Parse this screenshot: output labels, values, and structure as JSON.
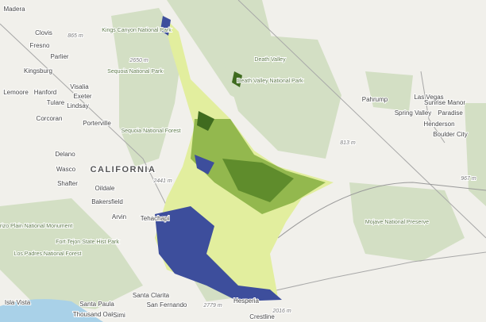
{
  "places": [
    {
      "label": "Madera",
      "kind": "city"
    },
    {
      "label": "Clovis",
      "kind": "city"
    },
    {
      "label": "Fresno",
      "kind": "city"
    },
    {
      "label": "Parlier",
      "kind": "city"
    },
    {
      "label": "Kingsburg",
      "kind": "city"
    },
    {
      "label": "Visalia",
      "kind": "city"
    },
    {
      "label": "Lemoore",
      "kind": "city"
    },
    {
      "label": "Hanford",
      "kind": "city"
    },
    {
      "label": "Exeter",
      "kind": "city"
    },
    {
      "label": "Tulare",
      "kind": "city"
    },
    {
      "label": "Lindsay",
      "kind": "city"
    },
    {
      "label": "Corcoran",
      "kind": "city"
    },
    {
      "label": "Porterville",
      "kind": "city"
    },
    {
      "label": "Delano",
      "kind": "city"
    },
    {
      "label": "Wasco",
      "kind": "city"
    },
    {
      "label": "Shafter",
      "kind": "city"
    },
    {
      "label": "Oildale",
      "kind": "city"
    },
    {
      "label": "Bakersfield",
      "kind": "city"
    },
    {
      "label": "Arvin",
      "kind": "city"
    },
    {
      "label": "Tehachapi",
      "kind": "city"
    },
    {
      "label": "CALIFORNIA",
      "kind": "state"
    },
    {
      "label": "Death Valley",
      "kind": "park"
    },
    {
      "label": "Death Valley National Park",
      "kind": "park"
    },
    {
      "label": "Pahrump",
      "kind": "city"
    },
    {
      "label": "Las Vegas",
      "kind": "city"
    },
    {
      "label": "Sunrise Manor",
      "kind": "city"
    },
    {
      "label": "Spring Valley",
      "kind": "city"
    },
    {
      "label": "Paradise",
      "kind": "city"
    },
    {
      "label": "Henderson",
      "kind": "city"
    },
    {
      "label": "Boulder City",
      "kind": "city"
    },
    {
      "label": "Mojave National Preserve",
      "kind": "park"
    },
    {
      "label": "Sequoia National Park",
      "kind": "park"
    },
    {
      "label": "Sequoia National Forest",
      "kind": "park"
    },
    {
      "label": "Kings Canyon National Park",
      "kind": "park"
    },
    {
      "label": "Carrizo Plain National Monument",
      "kind": "park"
    },
    {
      "label": "Fort Tejon State Hist Park",
      "kind": "park"
    },
    {
      "label": "Los Padres National Forest",
      "kind": "park"
    },
    {
      "label": "Santa Clarita",
      "kind": "city"
    },
    {
      "label": "Santa Paula",
      "kind": "city"
    },
    {
      "label": "Thousand Oaks",
      "kind": "city"
    },
    {
      "label": "Simi",
      "kind": "city"
    },
    {
      "label": "San Fernando",
      "kind": "city"
    },
    {
      "label": "Hesperia",
      "kind": "city"
    },
    {
      "label": "Crestline",
      "kind": "city"
    },
    {
      "label": "Isla Vista",
      "kind": "city"
    },
    {
      "label": "865 m",
      "kind": "elev"
    },
    {
      "label": "2650 m",
      "kind": "elev"
    },
    {
      "label": "813 m",
      "kind": "elev"
    },
    {
      "label": "967 m",
      "kind": "elev"
    },
    {
      "label": "2441 m",
      "kind": "elev"
    },
    {
      "label": "2779 m",
      "kind": "elev"
    },
    {
      "label": "2016 m",
      "kind": "elev"
    }
  ]
}
